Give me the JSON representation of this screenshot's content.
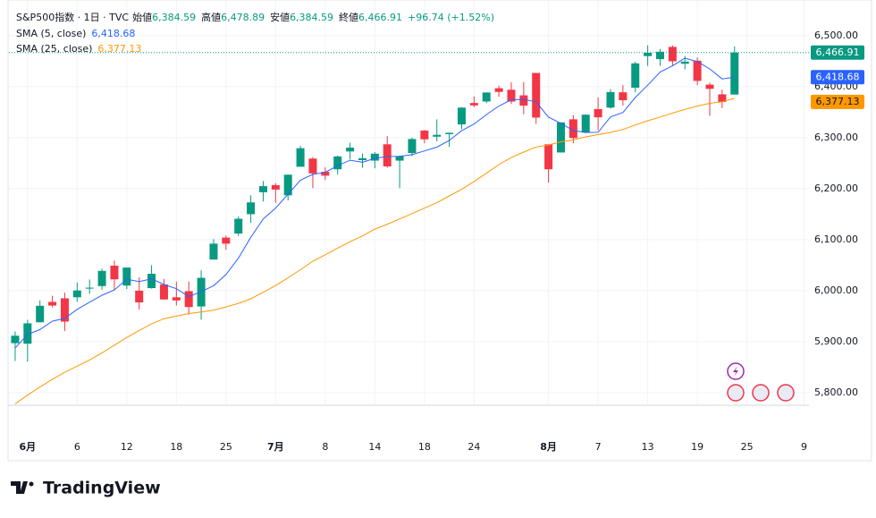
{
  "chart_data": {
    "type": "candlestick",
    "header": {
      "symbol": "S&P500指数 · 1日 · TVC",
      "open_label": "始値",
      "open": "6,384.59",
      "high_label": "高値",
      "high": "6,478.89",
      "low_label": "安値",
      "low": "6,384.59",
      "close_label": "終値",
      "close": "6,466.91",
      "change": "+96.74 (+1.52%)"
    },
    "up_color": "#089981",
    "down_color": "#f23645",
    "open": [
      5897,
      5896,
      5938,
      5978,
      5985,
      5987,
      6004,
      6009,
      6049,
      6010,
      6000,
      6005,
      6012,
      5987,
      5999,
      5969,
      6061,
      6104,
      6112,
      6150,
      6193,
      6207,
      6187,
      6243,
      6259,
      6233,
      6238,
      6273,
      6256,
      6255,
      6287,
      6255,
      6270,
      6314,
      6302,
      6307,
      6326,
      6368,
      6371,
      6397,
      6394,
      6383,
      6427,
      6287,
      6271,
      6336,
      6310,
      6356,
      6359,
      6389,
      6398,
      6460,
      6454,
      6478,
      6445,
      6451,
      6404,
      6385,
      6384.59
    ],
    "high": [
      5920,
      5943,
      5981,
      5990,
      5996,
      6016,
      6022,
      6043,
      6059,
      6045.43,
      6026,
      6050,
      6023,
      6018,
      6018,
      6040,
      6101,
      6108,
      6146,
      6187,
      6215,
      6211,
      6227.6,
      6284,
      6262,
      6242,
      6265,
      6290,
      6269,
      6272,
      6303,
      6265,
      6300,
      6315,
      6336,
      6310,
      6360,
      6381,
      6389,
      6402,
      6409,
      6409,
      6427,
      6287,
      6330,
      6344,
      6346,
      6379,
      6395,
      6403,
      6449,
      6481,
      6474,
      6481,
      6460,
      6457,
      6408,
      6394,
      6478.89
    ],
    "low": [
      5862,
      5861,
      5938,
      5967,
      5921,
      5978,
      5994,
      6002,
      6002,
      6003,
      5963,
      6004,
      5982,
      5971,
      5953,
      5943,
      6061,
      6080,
      6107,
      6133,
      6175,
      6172,
      6177,
      6243,
      6201,
      6217,
      6228,
      6258,
      6241,
      6240,
      6241,
      6201,
      6264,
      6289,
      6293,
      6282,
      6317,
      6360,
      6368,
      6380,
      6366,
      6346,
      6327,
      6212,
      6271,
      6289,
      6309,
      6315,
      6357,
      6363,
      6389,
      6441,
      6441,
      6441,
      6434,
      6403,
      6343,
      6358,
      6384.59
    ],
    "close": [
      5911.69,
      5935.94,
      5970.37,
      5970.81,
      5939.3,
      6000.36,
      6005.88,
      6038.81,
      6022.24,
      6045.26,
      5976.97,
      6033.11,
      5982.72,
      5980.87,
      5967.84,
      6025.17,
      6092.18,
      6092.16,
      6141.02,
      6173.07,
      6204.95,
      6198.24,
      6227.42,
      6279.35,
      6229.98,
      6225.52,
      6263.26,
      6280.46,
      6259.75,
      6268.56,
      6243.76,
      6263.7,
      6297.36,
      6296.79,
      6305.6,
      6309.62,
      6358.91,
      6363.35,
      6388.64,
      6389.77,
      6370.86,
      6362.9,
      6339.39,
      6238.01,
      6329.94,
      6299.19,
      6345.06,
      6340.0,
      6389.45,
      6373.45,
      6445.76,
      6466.58,
      6468.54,
      6449.8,
      6449.15,
      6411.37,
      6395.78,
      6370.17,
      6466.91
    ],
    "close_label": "6,466.91",
    "series": [
      {
        "name": "SMA (5, close)",
        "color": "#2962ff",
        "last_label": "6,418.68",
        "values": [
          5887.35,
          5913.98,
          5923.74,
          5940.2,
          5945.62,
          5963.36,
          5977.34,
          5991.03,
          6001.32,
          6022.51,
          6017.83,
          6023.28,
          6012.06,
          6003.79,
          5988.3,
          5997.94,
          6009.76,
          6031.64,
          6063.67,
          6104.72,
          6140.68,
          6161.89,
          6188.94,
          6216.61,
          6227.99,
          6232.1,
          6245.11,
          6255.71,
          6251.79,
          6259.51,
          6263.16,
          6263.25,
          6266.63,
          6274.03,
          6281.44,
          6294.61,
          6313.66,
          6326.85,
          6345.22,
          6362.06,
          6374.31,
          6375.1,
          6370.31,
          6340.19,
          6328.22,
          6313.89,
          6310.32,
          6310.44,
          6340.73,
          6349.43,
          6378.74,
          6403.05,
          6428.76,
          6440.83,
          6455.97,
          6449.09,
          6434.93,
          6415.25,
          6418.68
        ]
      },
      {
        "name": "SMA (25, close)",
        "color": "#ff9800",
        "last_label": "6,377.13",
        "values": [
          5778,
          5795,
          5811,
          5826,
          5840,
          5852,
          5864,
          5878,
          5893,
          5908,
          5922,
          5935,
          5945,
          5950,
          5955,
          5958,
          5962,
          5968,
          5975,
          5984,
          5997,
          6010,
          6025,
          6041,
          6057.83,
          6070.38,
          6083.47,
          6095.88,
          6107.44,
          6120.61,
          6130.34,
          6140.65,
          6151.0,
          6161.98,
          6172.39,
          6185.7,
          6198.73,
          6213.96,
          6230.27,
          6247.14,
          6260.97,
          6271.8,
          6281.69,
          6285.57,
          6291.84,
          6295.61,
          6301.49,
          6305.99,
          6310.39,
          6316.13,
          6324.94,
          6333.07,
          6340.6,
          6348.2,
          6355.42,
          6362.13,
          6367.41,
          6370.32,
          6377.13
        ]
      }
    ],
    "xlim": [
      -0.5,
      64
    ],
    "xticks": [
      {
        "value": 1,
        "label": "6月"
      },
      {
        "value": 5,
        "label": "6"
      },
      {
        "value": 9,
        "label": "12"
      },
      {
        "value": 13,
        "label": "18"
      },
      {
        "value": 17,
        "label": "25"
      },
      {
        "value": 21,
        "label": "7月"
      },
      {
        "value": 25,
        "label": "8"
      },
      {
        "value": 29,
        "label": "14"
      },
      {
        "value": 33,
        "label": "18"
      },
      {
        "value": 37,
        "label": "24"
      },
      {
        "value": 43,
        "label": "8月"
      },
      {
        "value": 47,
        "label": "7"
      },
      {
        "value": 51,
        "label": "13"
      },
      {
        "value": 55,
        "label": "19"
      },
      {
        "value": 59,
        "label": "25"
      },
      {
        "value": 63.6,
        "label": "9"
      }
    ],
    "ylim": [
      5777,
      6570
    ],
    "yticks": [
      {
        "value": 5800,
        "label": "5,800.00"
      },
      {
        "value": 5900,
        "label": "5,900.00"
      },
      {
        "value": 6000,
        "label": "6,000.00"
      },
      {
        "value": 6100,
        "label": "6,100.00"
      },
      {
        "value": 6200,
        "label": "6,200.00"
      },
      {
        "value": 6300,
        "label": "6,300.00"
      },
      {
        "value": 6400,
        "label": "6,400.00"
      },
      {
        "value": 6500,
        "label": "6,500.00"
      }
    ],
    "brand": "TradingView"
  }
}
